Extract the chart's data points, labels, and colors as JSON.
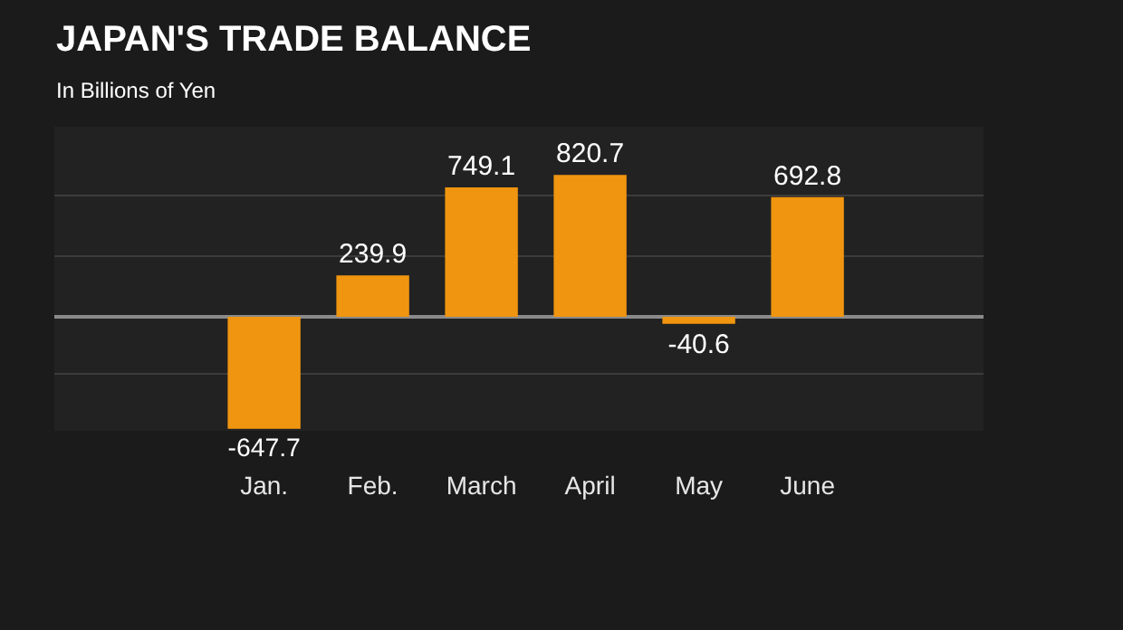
{
  "chart_data": {
    "type": "bar",
    "title": "JAPAN'S TRADE BALANCE",
    "subtitle": "In Billions of Yen",
    "categories": [
      "Jan.",
      "Feb.",
      "March",
      "April",
      "May",
      "June"
    ],
    "values": [
      -647.7,
      239.9,
      749.1,
      820.7,
      -40.6,
      692.8
    ],
    "color": "#f0950f",
    "ylim": [
      -660,
      1100
    ],
    "yticks": [
      {
        "value": -330,
        "label": null
      },
      {
        "value": 0,
        "label": null
      },
      {
        "value": 350,
        "label": null
      },
      {
        "value": 700,
        "label": null
      }
    ],
    "grid": "y",
    "data_labels": true,
    "tick_labels": "x"
  }
}
